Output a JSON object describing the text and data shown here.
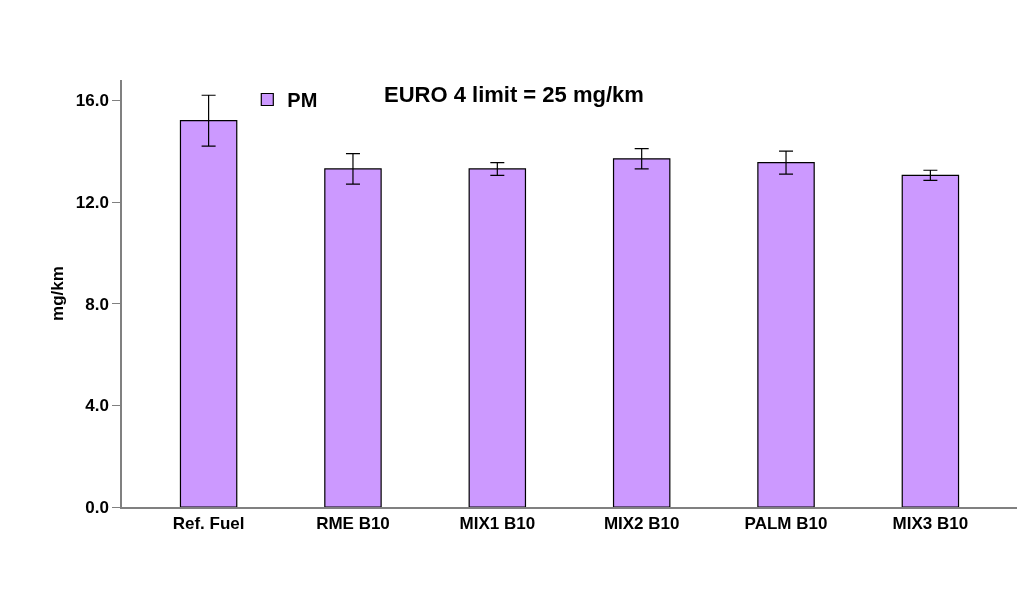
{
  "chart_data": {
    "type": "bar",
    "ylabel": "mg/km",
    "categories": [
      "Ref. Fuel",
      "RME B10",
      "MIX1 B10",
      "MIX2 B10",
      "PALM B10",
      "MIX3 B10"
    ],
    "series": [
      {
        "name": "PM",
        "color": "#cc99ff",
        "values": [
          15.2,
          13.3,
          13.3,
          13.7,
          13.55,
          13.05
        ],
        "errors": [
          1.0,
          0.6,
          0.25,
          0.4,
          0.45,
          0.2
        ]
      }
    ],
    "ylim": [
      0,
      16.8
    ],
    "yticks": [
      {
        "value": 0,
        "label": "0.0"
      },
      {
        "value": 4,
        "label": "4.0"
      },
      {
        "value": 8,
        "label": "8.0"
      },
      {
        "value": 12,
        "label": "12.0"
      },
      {
        "value": 16,
        "label": "16.0"
      }
    ],
    "annotations": [
      "EURO 4 limit = 25 mg/km"
    ],
    "legend": "top"
  }
}
